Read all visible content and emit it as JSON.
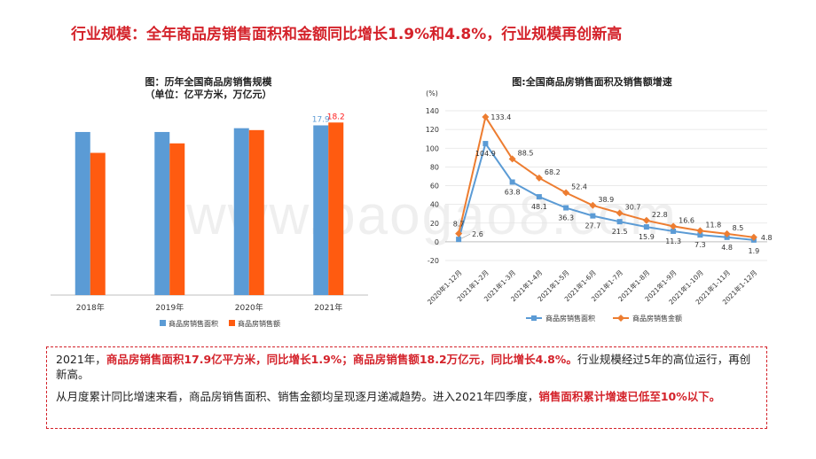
{
  "headline": "行业规模：全年商品房销售面积和金额同比增长1.9%和4.8%，行业规模再创新高",
  "watermark": "www.baogao8.com",
  "chart_data": [
    {
      "type": "bar",
      "title_line1": "图：历年全国商品房销售规模",
      "title_line2": "（单位：亿平方米，万亿元）",
      "categories": [
        "2018年",
        "2019年",
        "2020年",
        "2021年"
      ],
      "series": [
        {
          "name": "商品房销售面积",
          "values": [
            17.2,
            17.2,
            17.6,
            17.9
          ],
          "color": "#5b9bd5"
        },
        {
          "name": "商品房销售额",
          "values": [
            15.0,
            16.0,
            17.4,
            18.2
          ],
          "color": "#ff5b10"
        }
      ],
      "data_labels": {
        "area_2021": "17.9",
        "amount_2021": "18.2"
      },
      "ylim": [
        0,
        20
      ],
      "grid": false,
      "legend": "bottom"
    },
    {
      "type": "line",
      "title": "图:全国商品房销售面积及销售额增速",
      "unit": "(%)",
      "categories": [
        "2020年1-12月",
        "2021年1-2月",
        "2021年1-3月",
        "2021年1-4月",
        "2021年1-5月",
        "2021年1-6月",
        "2021年1-7月",
        "2021年1-8月",
        "2021年1-9月",
        "2021年1-10月",
        "2021年1-11月",
        "2021年1-12月"
      ],
      "series": [
        {
          "name": "商品房销售面积",
          "values": [
            2.6,
            104.9,
            63.8,
            48.1,
            36.3,
            27.7,
            21.5,
            15.9,
            11.3,
            7.3,
            4.8,
            1.9
          ],
          "color": "#5b9bd5",
          "marker": "square"
        },
        {
          "name": "商品房销售金额",
          "values": [
            8.7,
            133.4,
            88.5,
            68.2,
            52.4,
            38.9,
            30.7,
            22.8,
            16.6,
            11.8,
            8.5,
            4.8
          ],
          "color": "#ed7d31",
          "marker": "diamond"
        }
      ],
      "ylim": [
        -20,
        140
      ],
      "yticks": [
        -20,
        0,
        20,
        40,
        60,
        80,
        100,
        120,
        140
      ],
      "grid": true,
      "legend": "bottom"
    }
  ],
  "summary": {
    "p1_a": "2021年，",
    "p1_hl": "商品房销售面积17.9亿平方米，同比增长1.9%；商品房销售额18.2万亿元，同比增长4.8%。",
    "p1_b": "行业规模经过5年的高位运行，再创新高。",
    "p2_a": "从月度累计同比增速来看，商品房销售面积、销售金额均呈现逐月递减趋势。进入2021年四季度，",
    "p2_hl": "销售面积累计增速已低至10%以下。"
  }
}
